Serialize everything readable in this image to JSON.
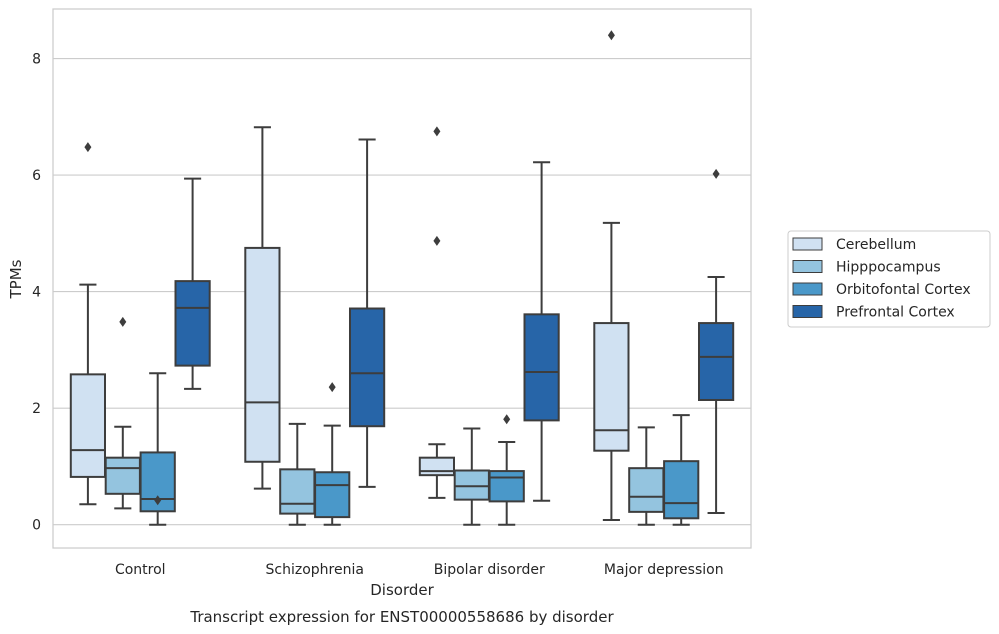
{
  "chart_data": {
    "type": "box",
    "caption": "Transcript expression for ENST00000558686 by disorder",
    "xlabel": "Disorder",
    "ylabel": "TPMs",
    "ylim": [
      -0.4,
      8.85
    ],
    "yticks": [
      0,
      2,
      4,
      6,
      8
    ],
    "grid": "horizontal",
    "legend_position": "right",
    "categories": [
      "Control",
      "Schizophrenia",
      "Bipolar disorder",
      "Major depression"
    ],
    "series": [
      {
        "name": "Cerebellum",
        "color": "#d0e1f2",
        "boxes": [
          {
            "whisker_low": 0.35,
            "q1": 0.82,
            "median": 1.28,
            "q3": 2.58,
            "whisker_high": 4.12,
            "outliers": [
              6.48
            ]
          },
          {
            "whisker_low": 0.62,
            "q1": 1.08,
            "median": 2.1,
            "q3": 4.75,
            "whisker_high": 6.82,
            "outliers": []
          },
          {
            "whisker_low": 0.46,
            "q1": 0.85,
            "median": 0.92,
            "q3": 1.15,
            "whisker_high": 1.38,
            "outliers": [
              6.75,
              4.87
            ]
          },
          {
            "whisker_low": 0.08,
            "q1": 1.27,
            "median": 1.62,
            "q3": 3.46,
            "whisker_high": 5.18,
            "outliers": [
              8.4
            ]
          }
        ]
      },
      {
        "name": "Hipppocampus",
        "color": "#94c4df",
        "boxes": [
          {
            "whisker_low": 0.28,
            "q1": 0.53,
            "median": 0.97,
            "q3": 1.15,
            "whisker_high": 1.68,
            "outliers": [
              3.48
            ]
          },
          {
            "whisker_low": 0.0,
            "q1": 0.19,
            "median": 0.36,
            "q3": 0.95,
            "whisker_high": 1.73,
            "outliers": []
          },
          {
            "whisker_low": 0.0,
            "q1": 0.43,
            "median": 0.66,
            "q3": 0.93,
            "whisker_high": 1.65,
            "outliers": []
          },
          {
            "whisker_low": 0.0,
            "q1": 0.22,
            "median": 0.48,
            "q3": 0.97,
            "whisker_high": 1.67,
            "outliers": []
          }
        ]
      },
      {
        "name": "Orbitofontal Cortex",
        "color": "#4a98c9",
        "boxes": [
          {
            "whisker_low": 0.0,
            "q1": 0.23,
            "median": 0.44,
            "q3": 1.24,
            "whisker_high": 2.6,
            "outliers": [
              0.42
            ]
          },
          {
            "whisker_low": 0.0,
            "q1": 0.13,
            "median": 0.68,
            "q3": 0.9,
            "whisker_high": 1.7,
            "outliers": [
              2.36
            ]
          },
          {
            "whisker_low": 0.0,
            "q1": 0.4,
            "median": 0.81,
            "q3": 0.92,
            "whisker_high": 1.42,
            "outliers": [
              1.81
            ]
          },
          {
            "whisker_low": 0.0,
            "q1": 0.11,
            "median": 0.37,
            "q3": 1.09,
            "whisker_high": 1.88,
            "outliers": []
          }
        ]
      },
      {
        "name": "Prefrontal Cortex",
        "color": "#2765a8",
        "boxes": [
          {
            "whisker_low": 2.33,
            "q1": 2.73,
            "median": 3.72,
            "q3": 4.18,
            "whisker_high": 5.94,
            "outliers": []
          },
          {
            "whisker_low": 0.65,
            "q1": 1.69,
            "median": 2.6,
            "q3": 3.71,
            "whisker_high": 6.61,
            "outliers": []
          },
          {
            "whisker_low": 0.41,
            "q1": 1.79,
            "median": 2.62,
            "q3": 3.61,
            "whisker_high": 6.22,
            "outliers": []
          },
          {
            "whisker_low": 0.2,
            "q1": 2.14,
            "median": 2.88,
            "q3": 3.46,
            "whisker_high": 4.25,
            "outliers": [
              6.02
            ]
          }
        ]
      }
    ]
  }
}
